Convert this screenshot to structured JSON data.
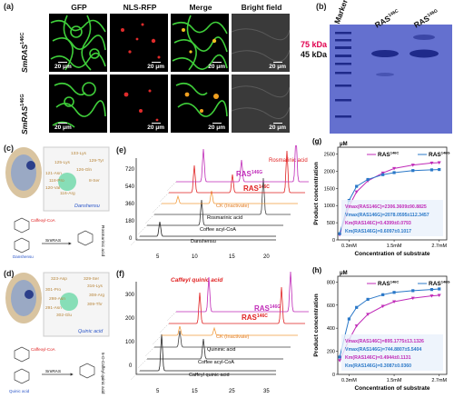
{
  "panels": {
    "a": {
      "label": "(a)",
      "columns": [
        "GFP",
        "NLS-RFP",
        "Merge",
        "Bright field"
      ],
      "rows": [
        {
          "name": "SmRAS",
          "sup": "146C"
        },
        {
          "name": "SmRAS",
          "sup": "146G"
        }
      ],
      "scale_bar": "20 μm"
    },
    "b": {
      "label": "(b)",
      "lane_labels": [
        {
          "name": "Marker",
          "sup": ""
        },
        {
          "name": "RAS",
          "sup": "146C"
        },
        {
          "name": "RAS",
          "sup": "146G"
        }
      ],
      "markers": [
        {
          "text": "75 kDa",
          "color": "#e0004f"
        },
        {
          "text": "45 kDa",
          "color": "#111111"
        }
      ]
    },
    "c": {
      "label": "(c)",
      "residues": [
        "133-Lys",
        "129-Tyr",
        "125-Lys",
        "126-Gln",
        "121-Asn",
        "118-Pro",
        "8-Ser",
        "120-Val",
        "116-Arg"
      ],
      "substrate": "Danshensu",
      "donor": "Caffeoyl-CoA",
      "enzyme": "SmRAS",
      "product": "Rosmarinic acid"
    },
    "d": {
      "label": "(d)",
      "residues": [
        "323-Asp",
        "329-Ser",
        "316-Lys",
        "301-Pro",
        "308-Arg",
        "298-Asn",
        "309-Thr",
        "291-Asn",
        "302-Glu"
      ],
      "substrate": "Quinic acid",
      "donor": "Caffeoyl-CoA",
      "enzyme": "SmRAS",
      "product": "5-O-Caffeyl quinic acid"
    },
    "e": {
      "label": "(e)",
      "y_ticks": [
        "0",
        "180",
        "360",
        "540",
        "720"
      ],
      "x_ticks": [
        "5",
        "10",
        "15",
        "20"
      ],
      "traces": [
        {
          "name": "Danshensu",
          "color": "#222222",
          "sup": ""
        },
        {
          "name": "Coffee acyl-CoA",
          "color": "#333333",
          "sup": ""
        },
        {
          "name": "Rosmarinic acid",
          "color": "#444444",
          "sup": ""
        },
        {
          "name": "CK (Inactivate)",
          "color": "#f39c3d",
          "sup": ""
        },
        {
          "name": "RAS",
          "color": "#e02020",
          "sup": "146C"
        },
        {
          "name": "RAS",
          "color": "#c02bb8",
          "sup": "146G"
        }
      ],
      "annotation": "Rosmarinic acid"
    },
    "f": {
      "label": "(f)",
      "y_ticks": [
        "0",
        "100",
        "200",
        "300"
      ],
      "x_ticks": [
        "5",
        "15",
        "25",
        "35"
      ],
      "traces": [
        {
          "name": "Caffeyl quinic acid",
          "color": "#222222",
          "sup": ""
        },
        {
          "name": "Coffee acyl-CoA",
          "color": "#333333",
          "sup": ""
        },
        {
          "name": "Quininic acid",
          "color": "#444444",
          "sup": ""
        },
        {
          "name": "CK (Inactivate)",
          "color": "#f39c3d",
          "sup": ""
        },
        {
          "name": "RAS",
          "color": "#e02020",
          "sup": "146C"
        },
        {
          "name": "RAS",
          "color": "#c02bb8",
          "sup": "146G"
        }
      ],
      "annotation": "Caffeyl quinic acid"
    }
  },
  "chart_data": [
    {
      "panel": "(g)",
      "type": "scatter",
      "unit": "μM",
      "xlabel": "Concentration of substrate",
      "ylabel": "Product concentration",
      "x_ticks": [
        "0.3mM",
        "1.5mM",
        "2.7mM"
      ],
      "x_tick_values": [
        0.3,
        1.5,
        2.7
      ],
      "y_ticks": [
        "0",
        "500",
        "1000",
        "1500",
        "2000",
        "2500"
      ],
      "ylim": [
        0,
        2700
      ],
      "xlim": [
        0,
        2.9
      ],
      "series": [
        {
          "name": "RAS",
          "sup": "146C",
          "color": "#c02bb8",
          "x": [
            0.05,
            0.3,
            0.5,
            0.8,
            1.2,
            1.5,
            2.0,
            2.5,
            2.7
          ],
          "y": [
            150,
            980,
            1400,
            1720,
            1950,
            2080,
            2180,
            2240,
            2250
          ]
        },
        {
          "name": "RAS",
          "sup": "146G",
          "color": "#2a78c8",
          "x": [
            0.05,
            0.3,
            0.5,
            0.8,
            1.2,
            1.5,
            2.0,
            2.5,
            2.7
          ],
          "y": [
            180,
            1150,
            1560,
            1760,
            1900,
            1960,
            2020,
            2040,
            2050
          ]
        }
      ],
      "params": [
        {
          "text": "Vmax(RAS146C)=2306.3609±90.8825",
          "color": "#c02bb8"
        },
        {
          "text": "Vmax(RAS146G)=2078.0595±112.3457",
          "color": "#2a78c8"
        },
        {
          "text": "Km(RAS146C)=0.4399±0.0793",
          "color": "#c02bb8"
        },
        {
          "text": "Km(RAS146G)=0.6097±0.1017",
          "color": "#2a78c8"
        }
      ]
    },
    {
      "panel": "(h)",
      "type": "scatter",
      "unit": "μM",
      "xlabel": "Concentration of substrate",
      "ylabel": "Product concentration",
      "x_ticks": [
        "0.3mM",
        "1.5mM",
        "2.7mM"
      ],
      "x_tick_values": [
        0.3,
        1.5,
        2.7
      ],
      "y_ticks": [
        "0",
        "200",
        "400",
        "600",
        "800"
      ],
      "ylim": [
        0,
        850
      ],
      "xlim": [
        0,
        2.9
      ],
      "series": [
        {
          "name": "RAS",
          "sup": "146C",
          "color": "#c02bb8",
          "x": [
            0.05,
            0.3,
            0.5,
            0.8,
            1.2,
            1.5,
            2.0,
            2.5,
            2.7
          ],
          "y": [
            120,
            300,
            420,
            520,
            590,
            630,
            660,
            680,
            685
          ]
        },
        {
          "name": "RAS",
          "sup": "146G",
          "color": "#2a78c8",
          "x": [
            0.05,
            0.3,
            0.5,
            0.8,
            1.2,
            1.5,
            2.0,
            2.5,
            2.7
          ],
          "y": [
            150,
            480,
            580,
            650,
            690,
            710,
            725,
            735,
            740
          ]
        }
      ],
      "params": [
        {
          "text": "Vmax(RAS146C)=895.1775±13.1326",
          "color": "#c02bb8"
        },
        {
          "text": "Vmax(RAS146G)=744.8807±5.5404",
          "color": "#2a78c8"
        },
        {
          "text": "Km(RAS146C)=0.4944±0.1131",
          "color": "#c02bb8"
        },
        {
          "text": "Km(RAS146G)=0.3087±0.0360",
          "color": "#2a78c8"
        }
      ]
    }
  ]
}
